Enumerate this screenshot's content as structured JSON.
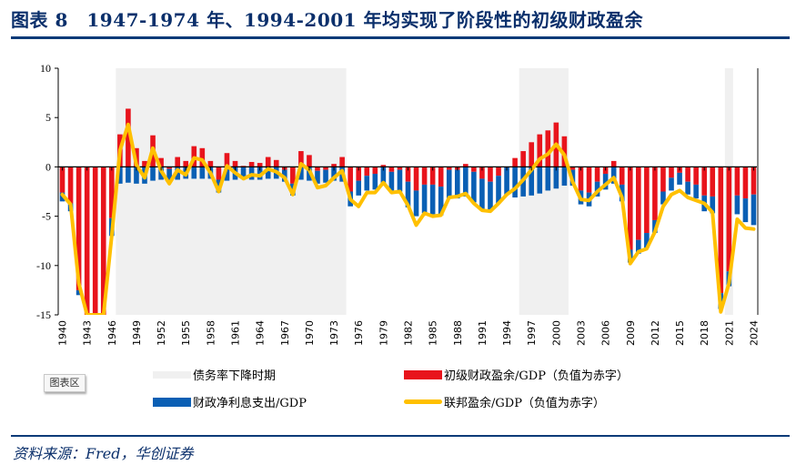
{
  "header": {
    "title": "图表 8　1947-1974 年、1994-2001 年均实现了阶段性的初级财政盈余"
  },
  "footer": {
    "source": "资料来源：Fred，华创证券"
  },
  "chart_area_chip": "图表区",
  "colors": {
    "primary_balance": "#e8141c",
    "net_interest": "#0a5fb4",
    "federal_surplus": "#ffc000",
    "shade": "#f0f0f0",
    "brand": "#0a3a78"
  },
  "legend": [
    {
      "key": "shade",
      "label": "债务率下降时期"
    },
    {
      "key": "primary_balance",
      "label": "初级财政盈余/GDP（负值为赤字）"
    },
    {
      "key": "net_interest",
      "label": "财政净利息支出/GDP"
    },
    {
      "key": "federal_surplus",
      "label": "联邦盈余/GDP（负值为赤字）"
    }
  ],
  "chart_data": {
    "type": "bar",
    "title": "1947-1974 年、1994-2001 年均实现了阶段性的初级财政盈余",
    "xlabel": "",
    "ylabel": "",
    "ylim": [
      -15,
      10
    ],
    "yticks": [
      10,
      5,
      0,
      -5,
      -10,
      -15
    ],
    "xtick_labels": [
      "1940",
      "1943",
      "1946",
      "1949",
      "1952",
      "1955",
      "1958",
      "1961",
      "1964",
      "1967",
      "1970",
      "1973",
      "1976",
      "1979",
      "1982",
      "1985",
      "1988",
      "1991",
      "1994",
      "1997",
      "2000",
      "2003",
      "2006",
      "2009",
      "2012",
      "2015",
      "2018",
      "2021",
      "2024"
    ],
    "grid": false,
    "legend_position": "bottom",
    "shaded_periods": [
      {
        "label": "债务率下降时期",
        "start": 1947,
        "end": 1974
      },
      {
        "label": "债务率下降时期",
        "start": 1996,
        "end": 2001
      },
      {
        "label": "债务率下降时期",
        "start": 2021,
        "end": 2021
      }
    ],
    "x": [
      1940,
      1941,
      1942,
      1943,
      1944,
      1945,
      1946,
      1947,
      1948,
      1949,
      1950,
      1951,
      1952,
      1953,
      1954,
      1955,
      1956,
      1957,
      1958,
      1959,
      1960,
      1961,
      1962,
      1963,
      1964,
      1965,
      1966,
      1967,
      1968,
      1969,
      1970,
      1971,
      1972,
      1973,
      1974,
      1975,
      1976,
      1977,
      1978,
      1979,
      1980,
      1981,
      1982,
      1983,
      1984,
      1985,
      1986,
      1987,
      1988,
      1989,
      1990,
      1991,
      1992,
      1993,
      1994,
      1995,
      1996,
      1997,
      1998,
      1999,
      2000,
      2001,
      2002,
      2003,
      2004,
      2005,
      2006,
      2007,
      2008,
      2009,
      2010,
      2011,
      2012,
      2013,
      2014,
      2015,
      2016,
      2017,
      2018,
      2019,
      2020,
      2021,
      2022,
      2023,
      2024
    ],
    "series": [
      {
        "name": "初级财政盈余/GDP（负值为赤字）",
        "type": "bar",
        "values": [
          -2.6,
          -3.7,
          -12.5,
          -15,
          -15,
          -15,
          -5.2,
          3.3,
          5.9,
          1.9,
          0.6,
          3.2,
          0.9,
          -0.2,
          1.0,
          0.6,
          2.1,
          1.9,
          0.6,
          -1.3,
          1.4,
          0.6,
          0.1,
          0.5,
          0.4,
          1.0,
          0.7,
          -0.3,
          -1.7,
          1.6,
          1.2,
          -0.4,
          -0.3,
          0.3,
          1.0,
          -2.5,
          -1.4,
          -0.9,
          -0.7,
          0.2,
          -0.5,
          -0.3,
          -1.5,
          -2.4,
          -1.8,
          -1.8,
          -2.0,
          -0.3,
          -0.3,
          0.3,
          -0.5,
          -1.2,
          -1.5,
          -0.9,
          0.0,
          0.9,
          1.6,
          2.5,
          3.3,
          3.7,
          4.5,
          3.1,
          -0.3,
          -2.4,
          -2.6,
          -1.5,
          -0.7,
          0.6,
          -1.8,
          -8.4,
          -7.4,
          -6.7,
          -5.4,
          -2.5,
          -1.1,
          -0.6,
          -1.5,
          -1.8,
          -2.9,
          -3.0,
          -12.8,
          -10.6,
          -2.9,
          -3.2,
          -2.8
        ]
      },
      {
        "name": "财政净利息支出/GDP",
        "type": "bar",
        "values": [
          -0.9,
          -0.8,
          -0.5,
          -0.5,
          -0.8,
          -1.3,
          -1.8,
          -1.7,
          -1.6,
          -1.7,
          -1.7,
          -1.4,
          -1.3,
          -1.4,
          -1.3,
          -1.2,
          -1.2,
          -1.2,
          -1.2,
          -1.3,
          -1.4,
          -1.3,
          -1.2,
          -1.3,
          -1.3,
          -1.2,
          -1.2,
          -1.2,
          -1.2,
          -1.3,
          -1.4,
          -1.3,
          -1.3,
          -1.4,
          -1.5,
          -1.5,
          -1.5,
          -1.5,
          -1.6,
          -1.7,
          -1.9,
          -2.2,
          -2.6,
          -2.6,
          -2.9,
          -3.0,
          -2.9,
          -2.9,
          -2.9,
          -3.0,
          -3.1,
          -3.2,
          -3.0,
          -2.8,
          -2.8,
          -3.1,
          -3.0,
          -2.9,
          -2.7,
          -2.4,
          -2.2,
          -1.9,
          -1.6,
          -1.4,
          -1.4,
          -1.5,
          -1.6,
          -1.7,
          -1.7,
          -1.3,
          -1.4,
          -1.5,
          -1.3,
          -1.3,
          -1.3,
          -1.2,
          -1.3,
          -1.4,
          -1.6,
          -1.7,
          -1.6,
          -1.5,
          -1.9,
          -2.4,
          -3.1
        ]
      },
      {
        "name": "联邦盈余/GDP（负值为赤字）",
        "type": "line",
        "values": [
          -2.8,
          -3.8,
          -11.8,
          -20.0,
          -20.0,
          -20.0,
          -7.0,
          1.7,
          4.3,
          0.2,
          -1.1,
          1.9,
          -0.4,
          -1.7,
          -0.3,
          -0.8,
          0.9,
          0.7,
          -0.6,
          -2.5,
          0.1,
          -0.6,
          -1.2,
          -0.8,
          -0.9,
          -0.2,
          -0.5,
          -1.1,
          -2.8,
          0.3,
          -0.3,
          -2.1,
          -1.9,
          -1.1,
          -0.4,
          -3.3,
          -4.0,
          -2.6,
          -2.6,
          -1.6,
          -2.6,
          -2.5,
          -3.9,
          -5.9,
          -4.7,
          -5.0,
          -4.9,
          -3.1,
          -3.0,
          -2.7,
          -3.7,
          -4.4,
          -4.5,
          -3.7,
          -2.8,
          -2.2,
          -1.3,
          -0.3,
          0.8,
          1.3,
          2.3,
          1.2,
          -1.5,
          -3.3,
          -3.4,
          -2.5,
          -1.8,
          -1.1,
          -3.1,
          -9.8,
          -8.6,
          -8.3,
          -6.6,
          -4.0,
          -2.8,
          -2.4,
          -3.1,
          -3.4,
          -3.7,
          -4.6,
          -14.7,
          -11.8,
          -5.3,
          -6.2,
          -6.3
        ]
      }
    ]
  }
}
